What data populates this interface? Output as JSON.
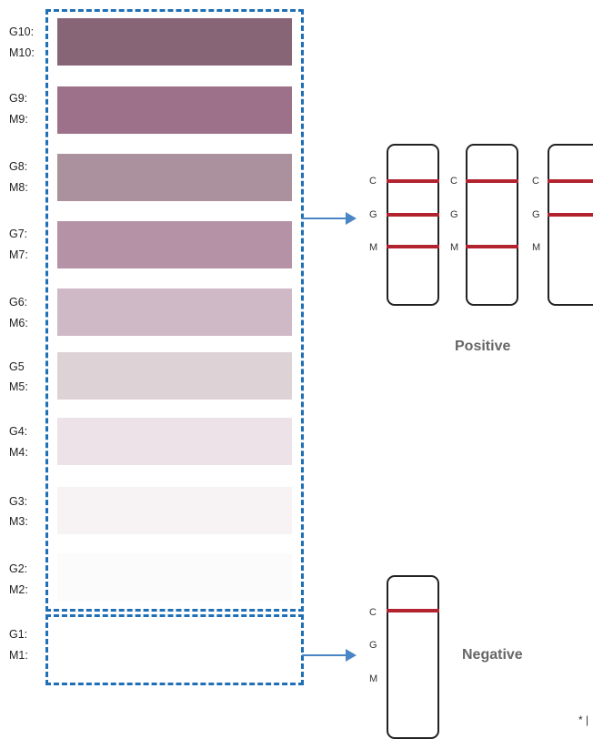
{
  "levels": [
    {
      "g": "G10:",
      "m": "M10:",
      "color": "#876577"
    },
    {
      "g": "G9:",
      "m": "M9:",
      "color": "#9d7189"
    },
    {
      "g": "G8:",
      "m": "M8:",
      "color": "#aa919d"
    },
    {
      "g": "G7:",
      "m": "M7:",
      "color": "#b592a6"
    },
    {
      "g": "G6:",
      "m": "M6:",
      "color": "#cfb9c6"
    },
    {
      "g": "G5",
      "m": "M5:",
      "color": "#ddd2d6"
    },
    {
      "g": "G4:",
      "m": "M4:",
      "color": "#ece2e7"
    },
    {
      "g": "G3:",
      "m": "M3:",
      "color": "#f7f3f5"
    },
    {
      "g": "G2:",
      "m": "M2:",
      "color": "#fcfbfc"
    },
    {
      "g": "G1:",
      "m": "M1:",
      "color": "#ffffff"
    }
  ],
  "strip_letters": {
    "c": "C",
    "g": "G",
    "m": "M"
  },
  "positive_label": "Positive",
  "negative_label": "Negative",
  "footnote": "* |",
  "colors": {
    "dash": "#1f6fb6",
    "arrow": "#4a86c5",
    "band": "#b3232f"
  }
}
